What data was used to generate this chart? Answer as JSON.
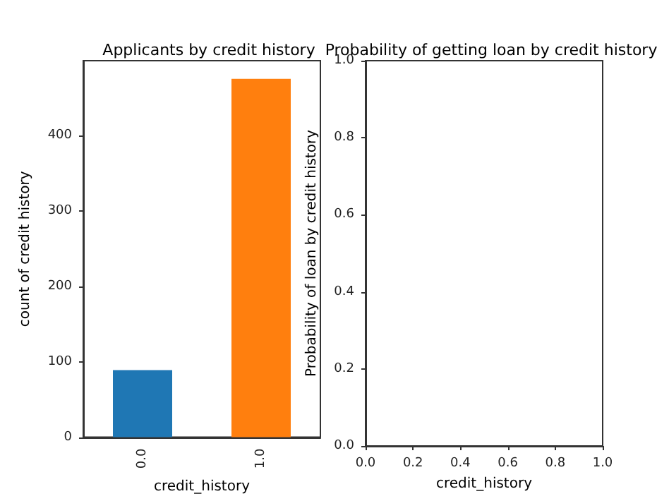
{
  "chart_data": [
    {
      "type": "bar",
      "title": "Applicants by credit history",
      "xlabel": "credit_history",
      "ylabel": "count of credit history",
      "categories": [
        "0.0",
        "1.0"
      ],
      "values": [
        89,
        475
      ],
      "colors": [
        "#1f77b4",
        "#ff7f0e"
      ],
      "ylim": [
        0,
        499
      ],
      "yticks": [
        0,
        100,
        200,
        300,
        400
      ],
      "grid": false
    },
    {
      "type": "line",
      "title": "Probability of getting loan by credit history",
      "xlabel": "credit_history",
      "ylabel": "Probability of loan by credit history",
      "xlim": [
        0,
        1
      ],
      "xticks": [
        {
          "value": 0,
          "label": "0.0"
        },
        0.2,
        0.4,
        0.6,
        0.8,
        {
          "value": 1,
          "label": "1.0"
        }
      ],
      "ylim": [
        0,
        1
      ],
      "yticks": [
        {
          "value": 0,
          "label": "0.0"
        },
        0.2,
        0.4,
        0.6,
        0.8,
        {
          "value": 1,
          "label": "1.0"
        }
      ],
      "grid": false
    }
  ]
}
